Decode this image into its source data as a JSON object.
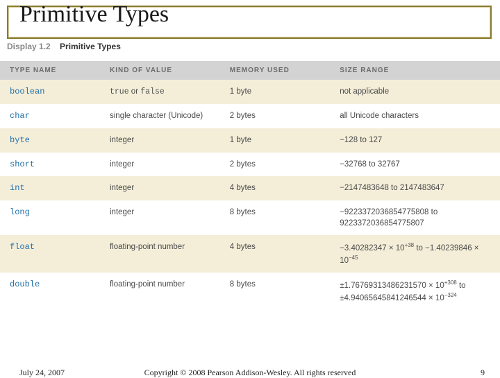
{
  "title": "Primitive Types",
  "caption": {
    "display": "Display 1.2",
    "label": "Primitive Types"
  },
  "table": {
    "header_bg": "#d3d3d3",
    "row_bg_alt": "#f4eed9",
    "row_bg": "#ffffff",
    "col_widths": [
      "20%",
      "24%",
      "22%",
      "34%"
    ],
    "columns": [
      "TYPE NAME",
      "KIND OF VALUE",
      "MEMORY USED",
      "SIZE RANGE"
    ],
    "rows": [
      {
        "type": "boolean",
        "kind_html": "<span class='code'>true</span> or <span class='code'>false</span>",
        "mem": "1 byte",
        "range_html": "not applicable"
      },
      {
        "type": "char",
        "kind_html": "single character (Unicode)",
        "mem": "2 bytes",
        "range_html": "all Unicode characters"
      },
      {
        "type": "byte",
        "kind_html": "integer",
        "mem": "1 byte",
        "range_html": "−128 to 127"
      },
      {
        "type": "short",
        "kind_html": "integer",
        "mem": "2 bytes",
        "range_html": "−32768 to 32767"
      },
      {
        "type": "int",
        "kind_html": "integer",
        "mem": "4 bytes",
        "range_html": "−2147483648 to 2147483647"
      },
      {
        "type": "long",
        "kind_html": "integer",
        "mem": "8 bytes",
        "range_html": "−9223372036854775808 to 9223372036854775807"
      },
      {
        "type": "float",
        "kind_html": "floating-point number",
        "mem": "4 bytes",
        "range_html": "−3.40282347 × 10<span class='sup'>+38</span> to −1.40239846 × 10<span class='sup'>−45</span>"
      },
      {
        "type": "double",
        "kind_html": "floating-point number",
        "mem": "8 bytes",
        "range_html": "±1.76769313486231570 × 10<span class='sup'>+308</span> to ±4.94065645841246544 × 10<span class='sup'>−324</span>"
      }
    ]
  },
  "footer": {
    "date": "July 24, 2007",
    "copyright": "Copyright © 2008 Pearson Addison-Wesley. All rights reserved",
    "page": "9"
  },
  "frame_outer_color": "#8a7a2e",
  "frame_inner_color": "#d6cea0"
}
